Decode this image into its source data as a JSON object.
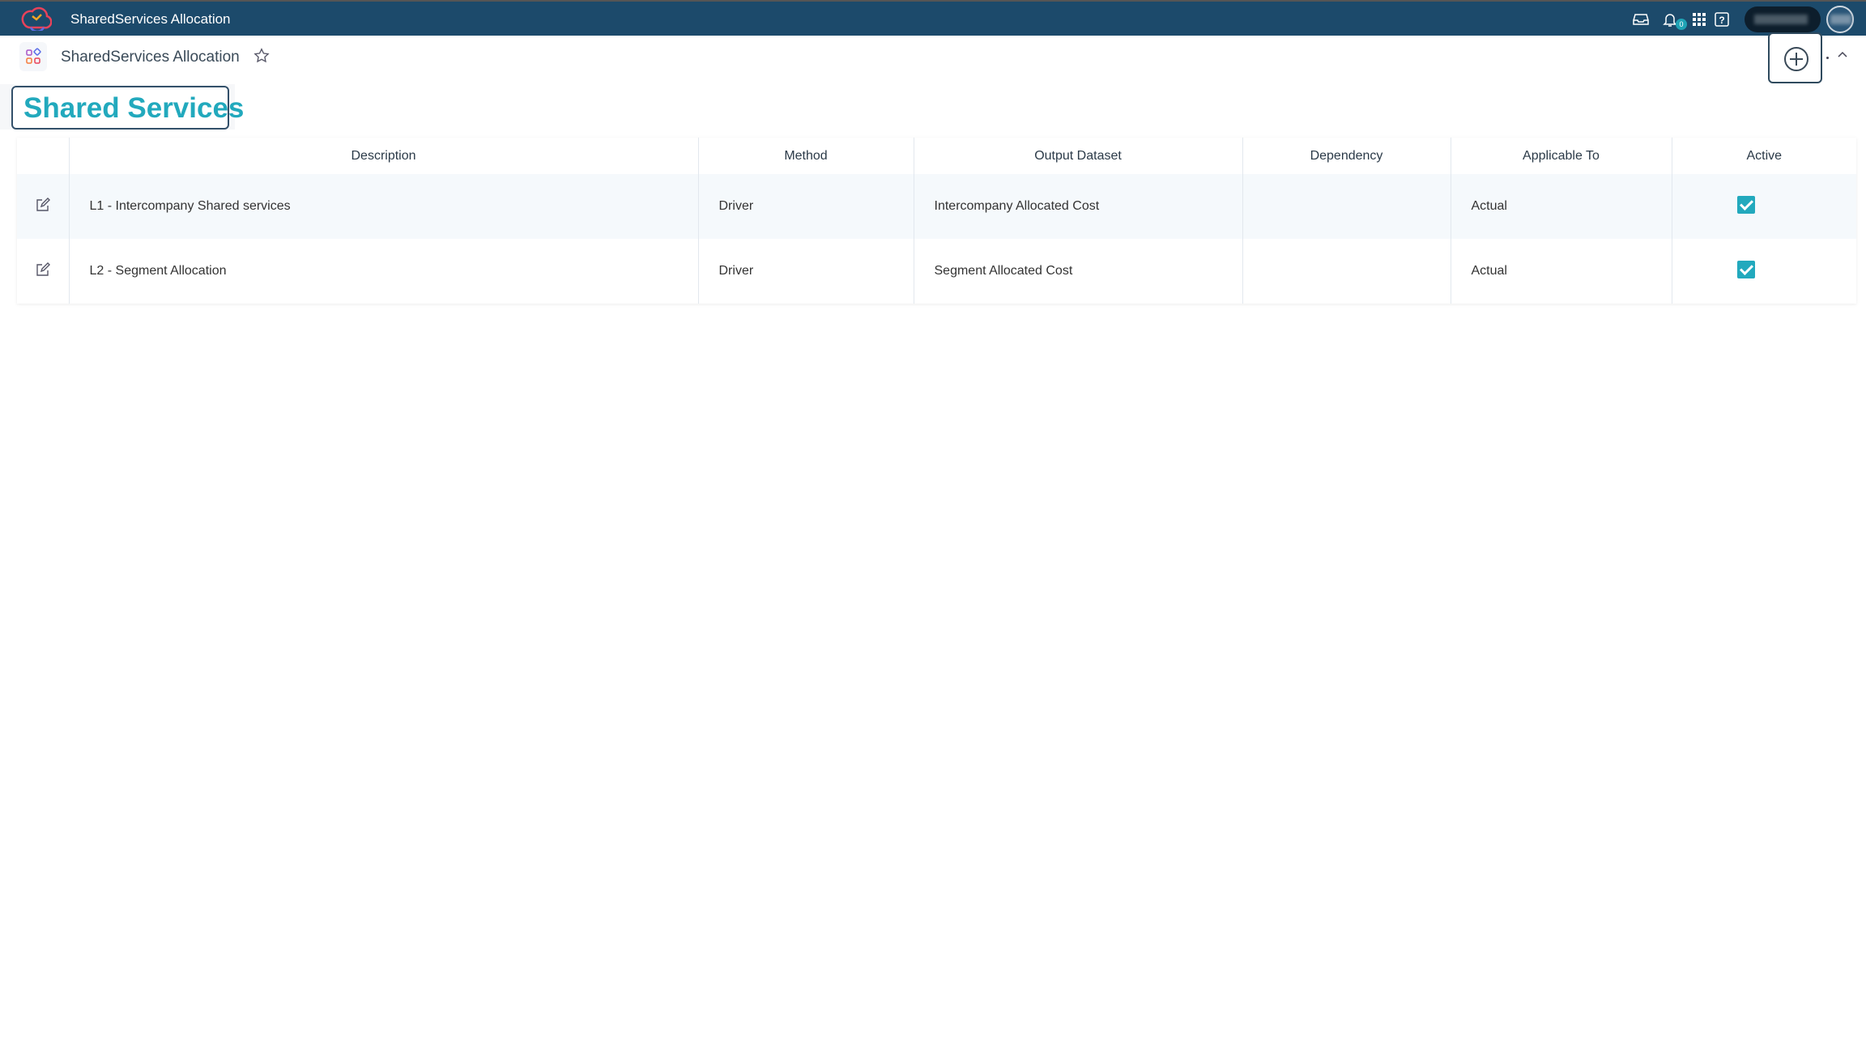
{
  "topbar": {
    "title": "SharedServices Allocation",
    "notification_count": "0",
    "brand_color": "#1c4a6b"
  },
  "header": {
    "page_title": "SharedServices Allocation"
  },
  "section": {
    "title": "Shared Services",
    "accent_color": "#22a9bd"
  },
  "table": {
    "columns": [
      "Description",
      "Method",
      "Output Dataset",
      "Dependency",
      "Applicable To",
      "Active"
    ],
    "rows": [
      {
        "description": "L1 - Intercompany Shared services",
        "method": "Driver",
        "output_dataset": "Intercompany Allocated Cost",
        "dependency": "",
        "applicable_to": "Actual",
        "active": true
      },
      {
        "description": "L2 - Segment Allocation",
        "method": "Driver",
        "output_dataset": "Segment Allocated Cost",
        "dependency": "",
        "applicable_to": "Actual",
        "active": true
      }
    ]
  }
}
